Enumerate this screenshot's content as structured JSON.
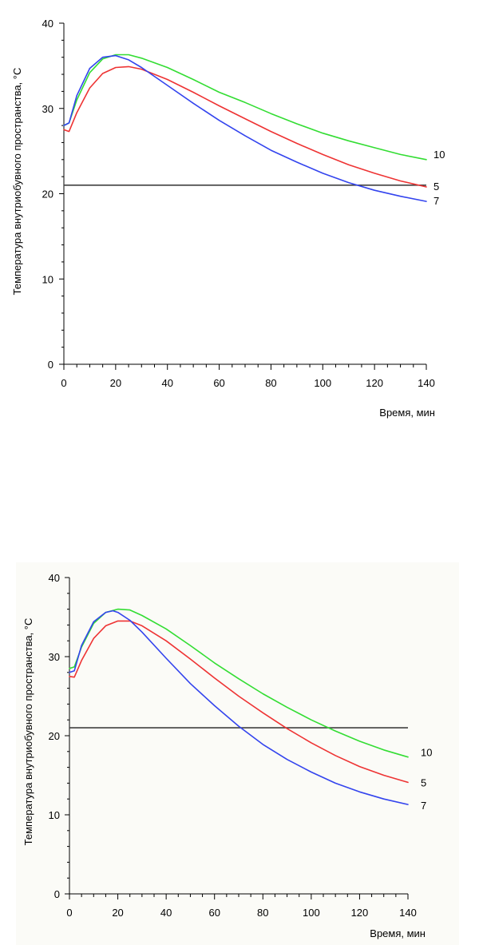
{
  "chart_data": [
    {
      "type": "line",
      "xlabel": "Время, мин",
      "ylabel": "Температура внутриобувного пространства, °С",
      "xlim": [
        0,
        140
      ],
      "ylim": [
        0,
        40
      ],
      "x_ticks": [
        0,
        20,
        40,
        60,
        80,
        100,
        120,
        140
      ],
      "y_ticks": [
        0,
        10,
        20,
        30,
        40
      ],
      "grid": false,
      "reference_line": {
        "y": 21,
        "color": "#404040"
      },
      "series": [
        {
          "name": "10",
          "color": "#33dd33",
          "x": [
            0,
            2,
            5,
            10,
            15,
            20,
            25,
            30,
            40,
            50,
            60,
            70,
            80,
            90,
            100,
            110,
            120,
            130,
            140
          ],
          "y": [
            28,
            28.3,
            31,
            34.2,
            35.8,
            36.3,
            36.3,
            35.9,
            34.8,
            33.4,
            31.9,
            30.7,
            29.4,
            28.2,
            27.1,
            26.2,
            25.4,
            24.6,
            24.0
          ]
        },
        {
          "name": "5",
          "color": "#ee3333",
          "x": [
            0,
            2,
            5,
            10,
            15,
            20,
            25,
            30,
            40,
            50,
            60,
            70,
            80,
            90,
            100,
            110,
            120,
            130,
            140
          ],
          "y": [
            27.5,
            27.3,
            29.5,
            32.4,
            34.1,
            34.8,
            34.9,
            34.6,
            33.4,
            31.9,
            30.3,
            28.8,
            27.3,
            25.9,
            24.6,
            23.4,
            22.4,
            21.5,
            20.8
          ]
        },
        {
          "name": "7",
          "color": "#3344ee",
          "x": [
            0,
            2,
            5,
            10,
            15,
            20,
            25,
            30,
            40,
            50,
            60,
            70,
            80,
            90,
            100,
            110,
            120,
            130,
            140
          ],
          "y": [
            28,
            28.3,
            31.5,
            34.7,
            36.0,
            36.2,
            35.7,
            34.8,
            32.7,
            30.6,
            28.6,
            26.8,
            25.1,
            23.7,
            22.4,
            21.3,
            20.4,
            19.7,
            19.1
          ]
        }
      ]
    },
    {
      "type": "line",
      "xlabel": "Время, мин",
      "ylabel": "Температура внутриобувного пространства, °С",
      "xlim": [
        0,
        140
      ],
      "ylim": [
        0,
        40
      ],
      "x_ticks": [
        0,
        20,
        40,
        60,
        80,
        100,
        120,
        140
      ],
      "y_ticks": [
        0,
        10,
        20,
        30,
        40
      ],
      "grid": false,
      "reference_line": {
        "y": 21,
        "color": "#404040"
      },
      "series": [
        {
          "name": "10",
          "color": "#33dd33",
          "x": [
            0,
            2,
            5,
            10,
            15,
            20,
            25,
            30,
            40,
            50,
            60,
            70,
            80,
            90,
            100,
            110,
            120,
            130,
            140
          ],
          "y": [
            28.5,
            28.7,
            31.2,
            34.2,
            35.6,
            36.0,
            35.9,
            35.2,
            33.5,
            31.4,
            29.2,
            27.2,
            25.3,
            23.6,
            22.0,
            20.6,
            19.3,
            18.2,
            17.3
          ]
        },
        {
          "name": "5",
          "color": "#ee3333",
          "x": [
            0,
            2,
            5,
            10,
            15,
            20,
            25,
            30,
            40,
            50,
            60,
            70,
            80,
            90,
            100,
            110,
            120,
            130,
            140
          ],
          "y": [
            27.5,
            27.4,
            29.5,
            32.3,
            33.9,
            34.5,
            34.5,
            33.9,
            32.0,
            29.7,
            27.3,
            25.0,
            22.9,
            20.9,
            19.1,
            17.5,
            16.1,
            15.0,
            14.1
          ]
        },
        {
          "name": "7",
          "color": "#3344ee",
          "x": [
            0,
            2,
            5,
            10,
            15,
            18,
            20,
            25,
            30,
            40,
            50,
            60,
            70,
            80,
            90,
            100,
            110,
            120,
            130,
            140
          ],
          "y": [
            28,
            28.2,
            31.4,
            34.4,
            35.6,
            35.8,
            35.6,
            34.6,
            33.1,
            29.8,
            26.6,
            23.8,
            21.2,
            18.9,
            17.0,
            15.4,
            14.0,
            12.9,
            12.0,
            11.3
          ]
        }
      ]
    }
  ]
}
